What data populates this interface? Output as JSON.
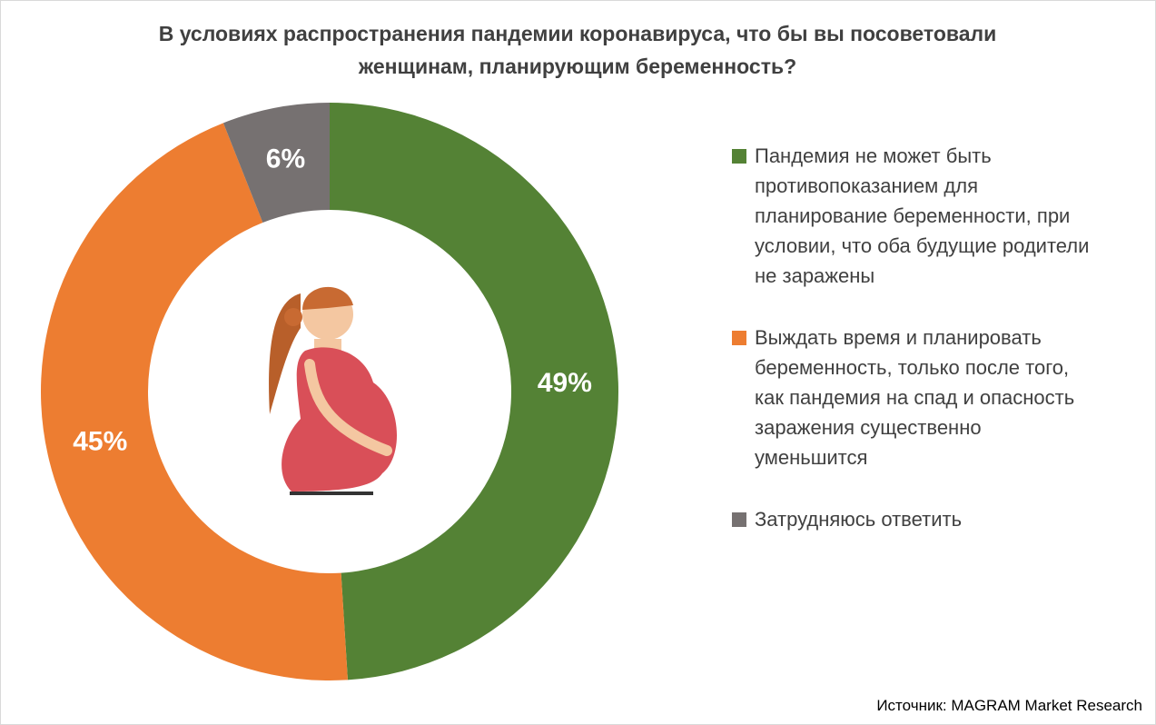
{
  "chart_data": {
    "type": "pie",
    "title": "В условиях распространения пандемии коронавируса, что бы вы посоветовали женщинам, планирующим беременность?",
    "categories": [
      "Пандемия не может быть противопоказанием для планирование беременности, при условии, что оба будущие родители не заражены",
      "Выждать время и планировать беременность, только после того, как пандемия на спад и опасность заражения существенно уменьшится",
      "Затрудняюсь ответить"
    ],
    "values": [
      49,
      45,
      6
    ],
    "value_labels": [
      "49%",
      "45%",
      "6%"
    ],
    "colors": [
      "#548235",
      "#ed7d31",
      "#767171"
    ],
    "source": "Источник: MAGRAM Market Research"
  }
}
